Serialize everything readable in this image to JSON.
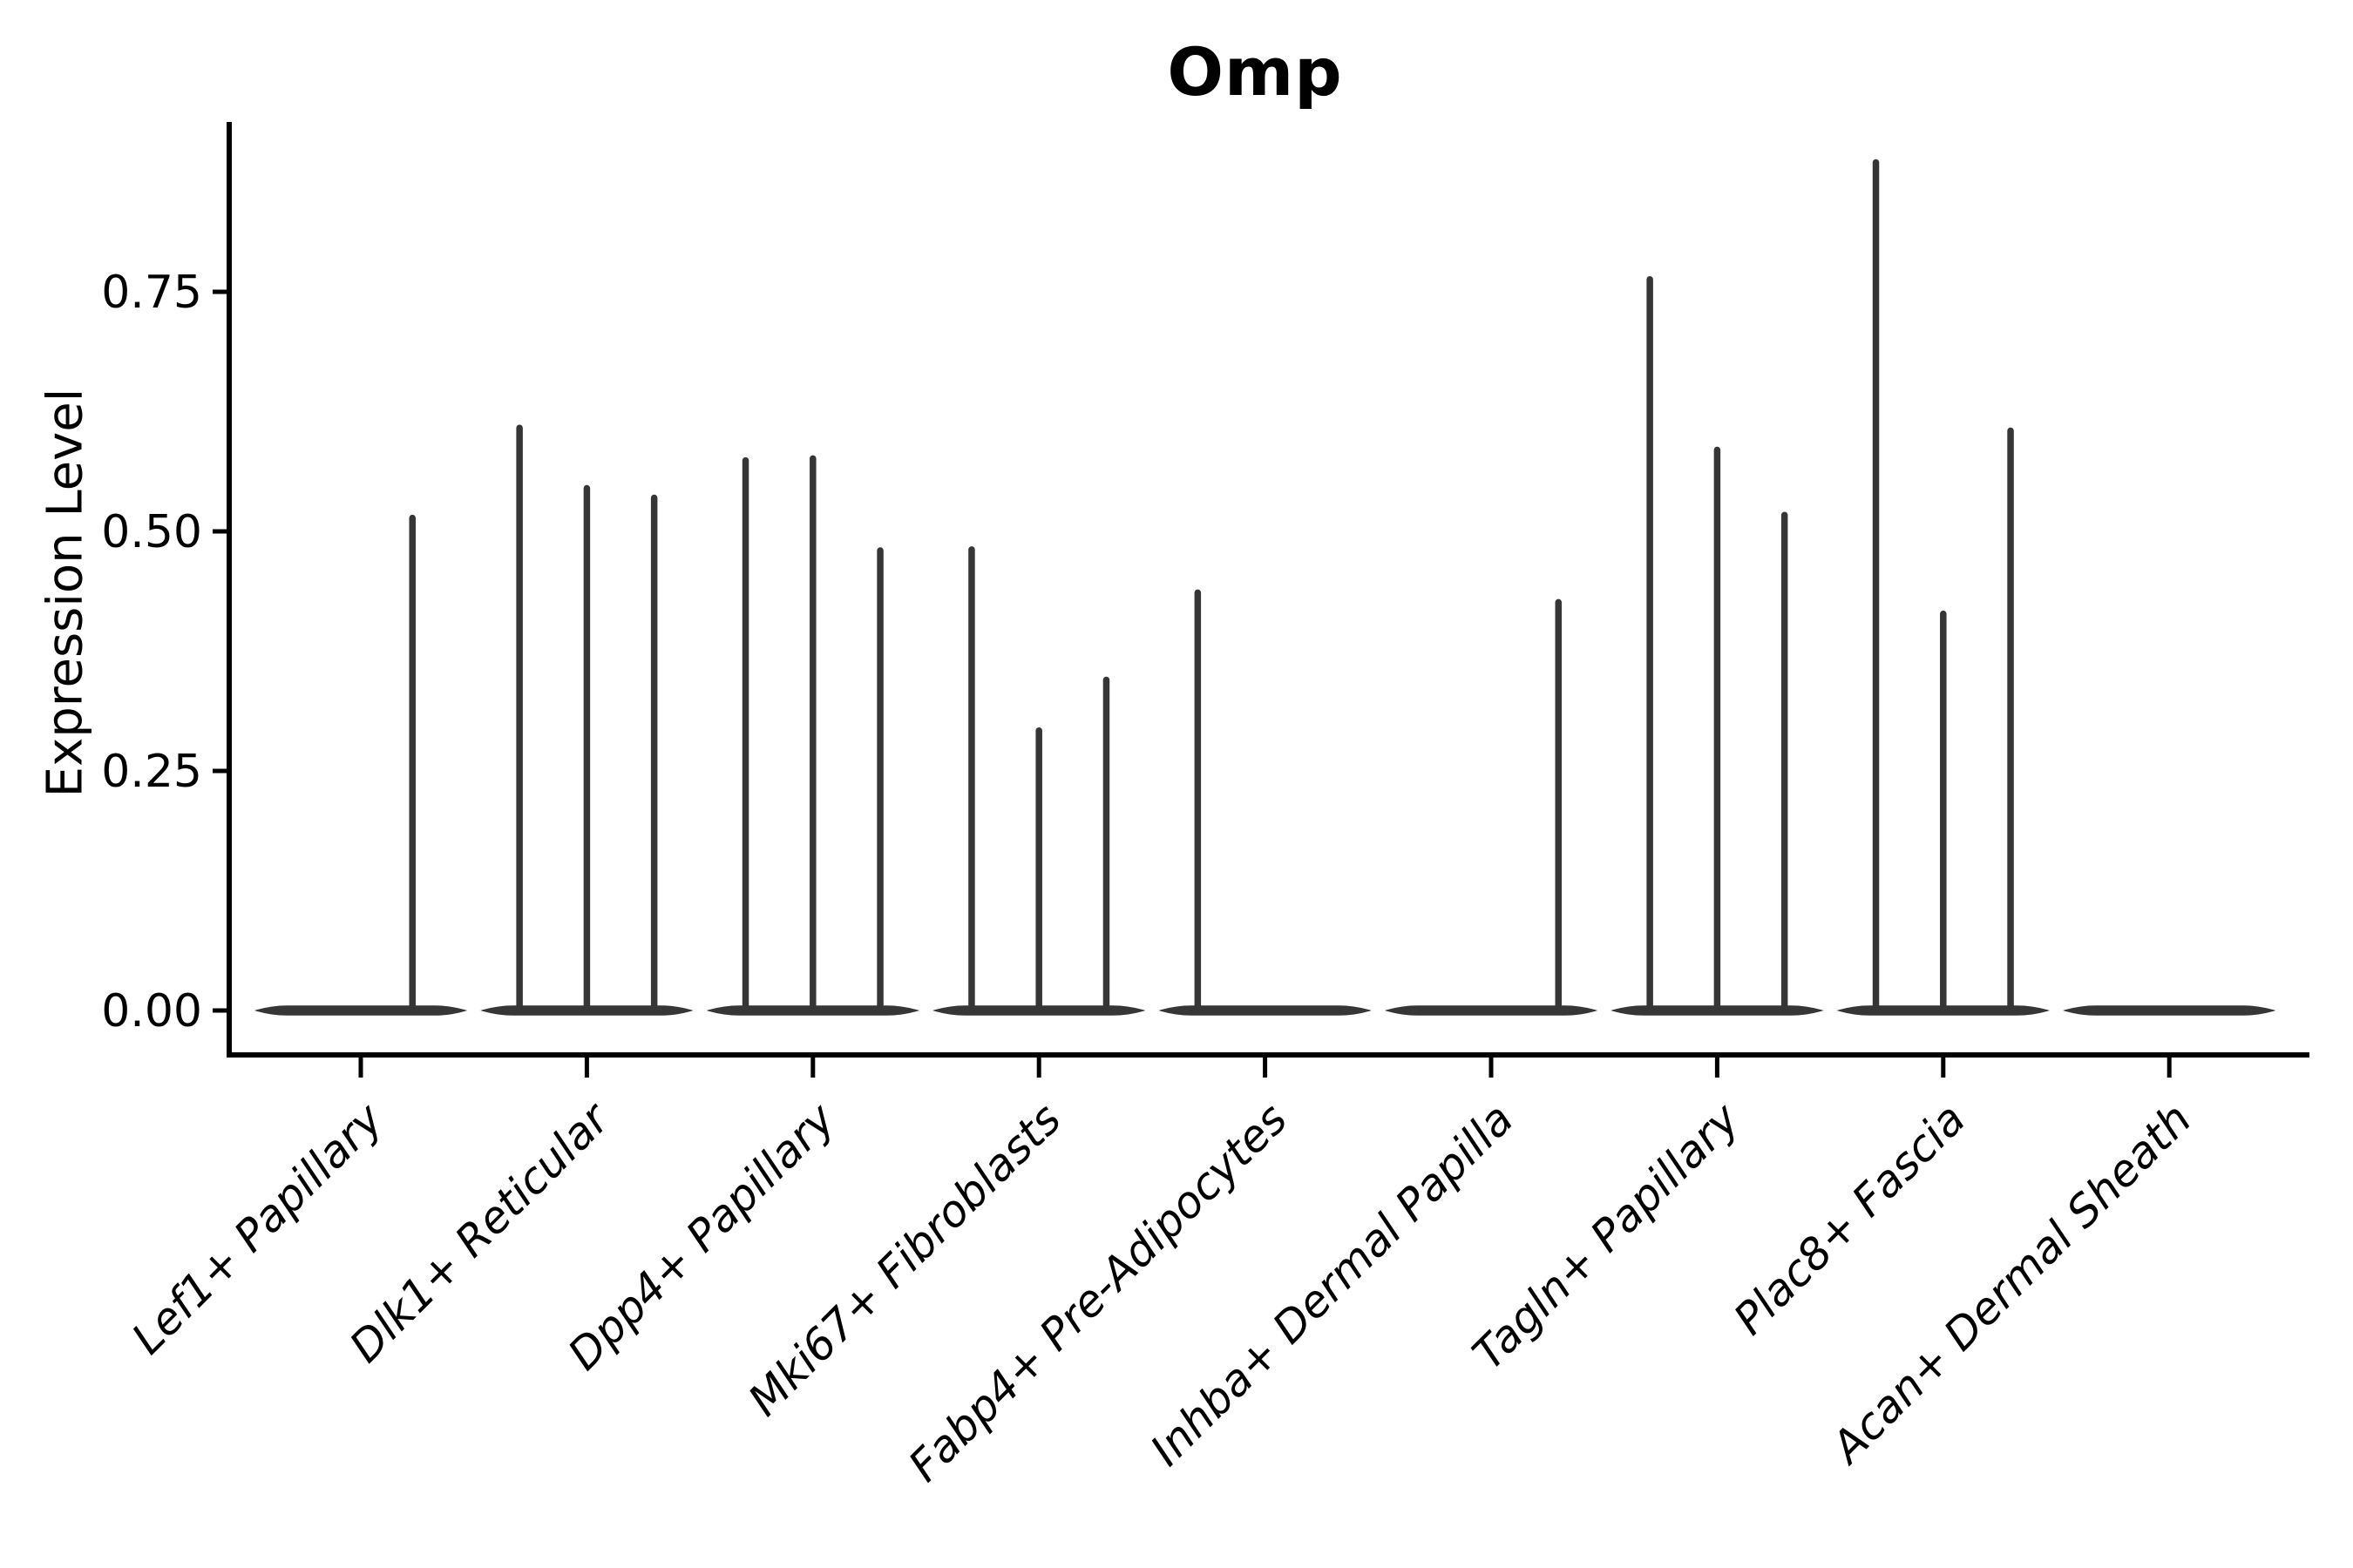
{
  "title": "Omp",
  "colors": {
    "violin": "#363636",
    "axis": "#000000",
    "text": "#000000",
    "background": "#ffffff"
  },
  "y_axis": {
    "label": "Expression Level",
    "tick_labels": [
      "0.00",
      "0.25",
      "0.50",
      "0.75"
    ],
    "tick_values": [
      0,
      0.25,
      0.5,
      0.75
    ]
  },
  "chart_data": {
    "type": "violin",
    "title": "Omp",
    "xlabel": "",
    "ylabel": "Expression Level",
    "ylim": [
      -0.046,
      0.93
    ],
    "yticks": [
      0,
      0.25,
      0.5,
      0.75
    ],
    "ytick_labels": [
      "0.00",
      "0.25",
      "0.50",
      "0.75"
    ],
    "grid": false,
    "legend": false,
    "note": "Each category shows flat violin bodies at 0 expression with thin spikes rising to the maximum expression of sparse sub-violins; dx_frac is the spike offset as a fraction of the category slot width.",
    "categories": [
      {
        "label": "Lef1+ Papillary",
        "spikes": [
          {
            "dx_frac": 0.25,
            "value": 0.514
          }
        ]
      },
      {
        "label": "Dlk1+ Reticular",
        "spikes": [
          {
            "dx_frac": -0.326,
            "value": 0.608
          },
          {
            "dx_frac": 0,
            "value": 0.545
          },
          {
            "dx_frac": 0.326,
            "value": 0.535
          }
        ]
      },
      {
        "label": "Dpp4+ Papillary",
        "spikes": [
          {
            "dx_frac": -0.326,
            "value": 0.574
          },
          {
            "dx_frac": 0,
            "value": 0.576
          },
          {
            "dx_frac": 0.326,
            "value": 0.48
          }
        ]
      },
      {
        "label": "Mki67+ Fibroblasts",
        "spikes": [
          {
            "dx_frac": -0.326,
            "value": 0.481
          },
          {
            "dx_frac": 0,
            "value": 0.292
          },
          {
            "dx_frac": 0.326,
            "value": 0.345
          }
        ]
      },
      {
        "label": "Fabp4+ Pre-Adipocytes",
        "spikes": [
          {
            "dx_frac": -0.326,
            "value": 0.436
          }
        ]
      },
      {
        "label": "Inhba+ Dermal Papilla",
        "spikes": [
          {
            "dx_frac": 0.326,
            "value": 0.426
          }
        ]
      },
      {
        "label": "Tagln+ Papillary",
        "spikes": [
          {
            "dx_frac": -0.326,
            "value": 0.763
          },
          {
            "dx_frac": 0,
            "value": 0.585
          },
          {
            "dx_frac": 0.326,
            "value": 0.517
          }
        ]
      },
      {
        "label": "Plac8+ Fascia",
        "spikes": [
          {
            "dx_frac": -0.326,
            "value": 0.885
          },
          {
            "dx_frac": 0,
            "value": 0.414
          },
          {
            "dx_frac": 0.326,
            "value": 0.605
          }
        ]
      },
      {
        "label": "Acan+ Dermal Sheath",
        "spikes": []
      }
    ]
  }
}
